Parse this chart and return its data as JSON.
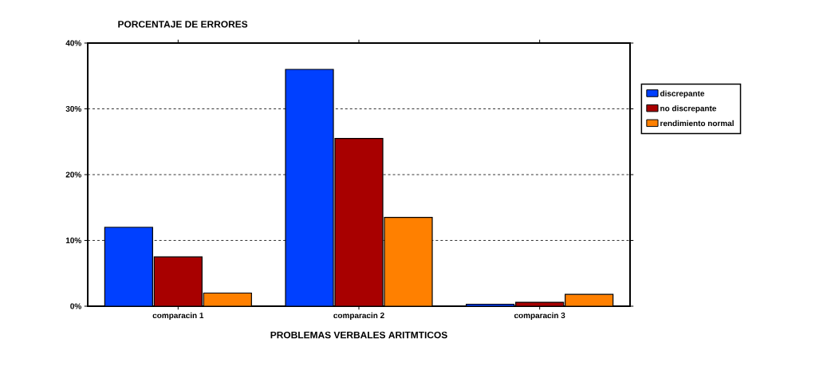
{
  "chart_data": {
    "type": "bar",
    "title": "PORCENTAJE DE ERRORES",
    "xlabel": "PROBLEMAS VERBALES ARITMTICOS",
    "categories": [
      "comparacin 1",
      "comparacin 2",
      "comparacin 3"
    ],
    "series": [
      {
        "name": "discrepante",
        "color": "#0040ff",
        "values": [
          12,
          36,
          0.3
        ]
      },
      {
        "name": "no discrepante",
        "color": "#a80000",
        "values": [
          7.5,
          25.5,
          0.6
        ]
      },
      {
        "name": "rendimiento normal",
        "color": "#ff8000",
        "values": [
          2,
          13.5,
          1.8
        ]
      }
    ],
    "ylim": [
      0,
      40
    ],
    "yticks": [
      {
        "value": 0,
        "label": "0%"
      },
      {
        "value": 10,
        "label": "10%"
      },
      {
        "value": 20,
        "label": "20%"
      },
      {
        "value": 30,
        "label": "30%"
      },
      {
        "value": 40,
        "label": "40%"
      }
    ],
    "grid": "y",
    "legend": "right"
  }
}
